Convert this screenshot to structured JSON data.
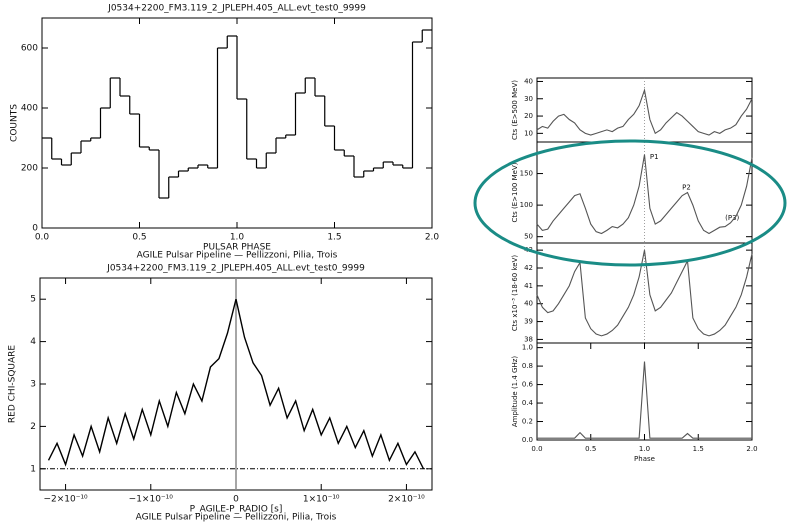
{
  "chart_data": [
    {
      "type": "histogram",
      "title": "J0534+2200_FM3.119_2_JPLEPH.405_ALL.evt_test0_9999",
      "x_label": "PULSAR PHASE",
      "subtitle": "AGILE Pulsar Pipeline — Pellizzoni, Pilia, Trois",
      "y_label": "COUNTS",
      "color": "#000000",
      "bins": [
        0,
        0.05,
        0.1,
        0.15,
        0.2,
        0.25,
        0.3,
        0.35,
        0.4,
        0.45,
        0.5,
        0.55,
        0.6,
        0.65,
        0.7,
        0.75,
        0.8,
        0.85,
        0.9,
        0.95,
        1,
        1.05,
        1.1,
        1.15,
        1.2,
        1.25,
        1.3,
        1.35,
        1.4,
        1.45,
        1.5,
        1.55,
        1.6,
        1.65,
        1.7,
        1.75,
        1.8,
        1.85,
        1.9,
        1.95,
        2
      ],
      "values": [
        300,
        230,
        210,
        250,
        290,
        300,
        400,
        500,
        440,
        380,
        270,
        260,
        100,
        170,
        190,
        200,
        210,
        200,
        600,
        640,
        430,
        230,
        200,
        250,
        300,
        310,
        450,
        500,
        440,
        340,
        260,
        240,
        170,
        190,
        200,
        220,
        210,
        200,
        620,
        660
      ],
      "xlim": [
        0,
        2
      ],
      "xticks": [
        {
          "value": 0,
          "label": "0.0"
        },
        {
          "value": 0.5,
          "label": "0.5"
        },
        {
          "value": 1,
          "label": "1.0"
        },
        {
          "value": 1.5,
          "label": "1.5"
        },
        {
          "value": 2,
          "label": "2.0"
        }
      ],
      "ylim": [
        0,
        700
      ],
      "yticks": [
        0,
        200,
        400,
        600
      ]
    },
    {
      "type": "line",
      "title": "J0534+2200_FM3.119_2_JPLEPH.405_ALL.evt_test0_9999",
      "x_label": "P_AGILE-P_RADIO [s]",
      "subtitle": "AGILE Pulsar Pipeline — Pellizzoni, Pilia, Trois",
      "y_label": "RED CHI-SQUARE",
      "color": "#000000",
      "x": [
        -2.2e-10,
        -2.1e-10,
        -2e-10,
        -1.9e-10,
        -1.8e-10,
        -1.7e-10,
        -1.6e-10,
        -1.5e-10,
        -1.4e-10,
        -1.3e-10,
        -1.2e-10,
        -1.1e-10,
        -1e-10,
        -9e-11,
        -8e-11,
        -7e-11,
        -6e-11,
        -5e-11,
        -4e-11,
        -3e-11,
        -2e-11,
        -1e-11,
        0,
        1e-11,
        2e-11,
        3e-11,
        4e-11,
        5e-11,
        6e-11,
        7e-11,
        8e-11,
        9e-11,
        1e-10,
        1.1e-10,
        1.2e-10,
        1.3e-10,
        1.4e-10,
        1.5e-10,
        1.6e-10,
        1.7e-10,
        1.8e-10,
        1.9e-10,
        2e-10,
        2.1e-10,
        2.2e-10
      ],
      "values": [
        1.2,
        1.6,
        1.1,
        1.8,
        1.3,
        2.0,
        1.4,
        2.2,
        1.6,
        2.3,
        1.7,
        2.4,
        1.8,
        2.6,
        2.0,
        2.8,
        2.3,
        3.0,
        2.6,
        3.4,
        3.6,
        4.2,
        5.0,
        4.1,
        3.5,
        3.2,
        2.5,
        2.9,
        2.2,
        2.6,
        1.9,
        2.4,
        1.8,
        2.2,
        1.6,
        2.0,
        1.5,
        1.9,
        1.3,
        1.8,
        1.2,
        1.6,
        1.1,
        1.4,
        1.0
      ],
      "reference_line": 1,
      "vline": 0,
      "xlim": [
        -2.3e-10,
        2.3e-10
      ],
      "xticks": [
        {
          "value": -2e-10,
          "label": "−2×10⁻¹⁰"
        },
        {
          "value": -1e-10,
          "label": "−1×10⁻¹⁰"
        },
        0,
        {
          "value": 1e-10,
          "label": "1×10⁻¹⁰"
        },
        {
          "value": 2e-10,
          "label": "2×10⁻¹⁰"
        }
      ],
      "ylim": [
        0.5,
        5.5
      ],
      "yticks": [
        1,
        2,
        3,
        4,
        5
      ]
    },
    {
      "type": "line",
      "y_label": "Cts (E>500 MeV)",
      "color": "#555555",
      "vline": 1,
      "x": [
        0,
        0.05,
        0.1,
        0.15,
        0.2,
        0.25,
        0.3,
        0.35,
        0.4,
        0.45,
        0.5,
        0.55,
        0.6,
        0.65,
        0.7,
        0.75,
        0.8,
        0.85,
        0.9,
        0.95,
        1,
        1.05,
        1.1,
        1.15,
        1.2,
        1.25,
        1.3,
        1.35,
        1.4,
        1.45,
        1.5,
        1.55,
        1.6,
        1.65,
        1.7,
        1.75,
        1.8,
        1.85,
        1.9,
        1.95,
        2
      ],
      "values": [
        12,
        14,
        13,
        17,
        20,
        21,
        18,
        16,
        12,
        10,
        9,
        10,
        11,
        12,
        11,
        13,
        14,
        18,
        21,
        26,
        35,
        18,
        10,
        12,
        16,
        19,
        22,
        20,
        17,
        14,
        11,
        10,
        9,
        11,
        10,
        12,
        13,
        15,
        20,
        24,
        30
      ],
      "xlim": [
        0,
        2
      ],
      "ylim": [
        5,
        42
      ],
      "yticks": [
        10,
        20,
        30,
        40
      ]
    },
    {
      "type": "line",
      "y_label": "Cts (E>100 MeV)",
      "color": "#555555",
      "vline": 1,
      "annotations": [
        "P1",
        "P2",
        "(P3)"
      ],
      "x": [
        0,
        0.05,
        0.1,
        0.15,
        0.2,
        0.25,
        0.3,
        0.35,
        0.4,
        0.45,
        0.5,
        0.55,
        0.6,
        0.65,
        0.7,
        0.75,
        0.8,
        0.85,
        0.9,
        0.95,
        1,
        1.05,
        1.1,
        1.15,
        1.2,
        1.25,
        1.3,
        1.35,
        1.4,
        1.45,
        1.5,
        1.55,
        1.6,
        1.65,
        1.7,
        1.75,
        1.8,
        1.85,
        1.9,
        1.95,
        2
      ],
      "values": [
        70,
        60,
        62,
        75,
        85,
        95,
        105,
        115,
        118,
        95,
        70,
        58,
        55,
        60,
        66,
        64,
        70,
        80,
        100,
        130,
        180,
        95,
        70,
        75,
        85,
        95,
        105,
        115,
        120,
        100,
        75,
        60,
        55,
        60,
        65,
        66,
        72,
        82,
        100,
        130,
        175
      ],
      "xlim": [
        0,
        2
      ],
      "ylim": [
        40,
        200
      ],
      "yticks": [
        50,
        100,
        150
      ]
    },
    {
      "type": "line",
      "y_label": "Cts x10⁻³ (18-60 keV)",
      "color": "#555555",
      "vline": 1,
      "x": [
        0,
        0.05,
        0.1,
        0.15,
        0.2,
        0.25,
        0.3,
        0.35,
        0.4,
        0.45,
        0.5,
        0.55,
        0.6,
        0.65,
        0.7,
        0.75,
        0.8,
        0.85,
        0.9,
        0.95,
        1,
        1.05,
        1.1,
        1.15,
        1.2,
        1.25,
        1.3,
        1.35,
        1.4,
        1.45,
        1.5,
        1.55,
        1.6,
        1.65,
        1.7,
        1.75,
        1.8,
        1.85,
        1.9,
        1.95,
        2
      ],
      "values": [
        40.5,
        39.8,
        39.5,
        39.6,
        40.0,
        40.5,
        41.0,
        41.8,
        42.3,
        39.2,
        38.6,
        38.3,
        38.2,
        38.3,
        38.5,
        38.8,
        39.3,
        39.8,
        40.5,
        41.5,
        43.0,
        40.5,
        39.6,
        39.8,
        40.2,
        40.6,
        41.2,
        41.8,
        42.4,
        39.2,
        38.6,
        38.3,
        38.2,
        38.3,
        38.5,
        38.8,
        39.3,
        39.8,
        40.5,
        41.5,
        42.8
      ],
      "xlim": [
        0,
        2
      ],
      "ylim": [
        37.8,
        43.4
      ],
      "yticks": [
        38,
        39,
        40,
        41,
        42,
        43
      ]
    },
    {
      "type": "line",
      "y_label": "Amplitude (1.4 GHz)",
      "x_label": "Phase",
      "color": "#555555",
      "x": [
        0,
        0.05,
        0.1,
        0.15,
        0.2,
        0.25,
        0.3,
        0.35,
        0.4,
        0.45,
        0.5,
        0.55,
        0.6,
        0.65,
        0.7,
        0.75,
        0.8,
        0.85,
        0.9,
        0.95,
        1,
        1.05,
        1.1,
        1.15,
        1.2,
        1.25,
        1.3,
        1.35,
        1.4,
        1.45,
        1.5,
        1.55,
        1.6,
        1.65,
        1.7,
        1.75,
        1.8,
        1.85,
        1.9,
        1.95,
        2
      ],
      "values": [
        0.02,
        0.02,
        0.02,
        0.02,
        0.02,
        0.02,
        0.02,
        0.02,
        0.08,
        0.02,
        0.02,
        0.02,
        0.02,
        0.02,
        0.02,
        0.02,
        0.02,
        0.02,
        0.02,
        0.02,
        0.85,
        0.02,
        0.02,
        0.02,
        0.02,
        0.02,
        0.02,
        0.02,
        0.07,
        0.02,
        0.02,
        0.02,
        0.02,
        0.02,
        0.02,
        0.02,
        0.02,
        0.02,
        0.02,
        0.02,
        0.02
      ],
      "xlim": [
        0,
        2
      ],
      "xticks": [
        {
          "value": 0,
          "label": "0.0"
        },
        {
          "value": 0.5,
          "label": "0.5"
        },
        {
          "value": 1,
          "label": "1.0"
        },
        {
          "value": 1.5,
          "label": "1.5"
        },
        {
          "value": 2,
          "label": "2.0"
        }
      ],
      "ylim": [
        0,
        1.05
      ],
      "yticks": [
        {
          "value": 0,
          "label": "0.0"
        },
        {
          "value": 0.2,
          "label": "0.2"
        },
        {
          "value": 0.4,
          "label": "0.4"
        },
        {
          "value": 0.6,
          "label": "0.6"
        },
        {
          "value": 0.8,
          "label": "0.8"
        },
        {
          "value": 1,
          "label": "1.0"
        }
      ]
    }
  ]
}
